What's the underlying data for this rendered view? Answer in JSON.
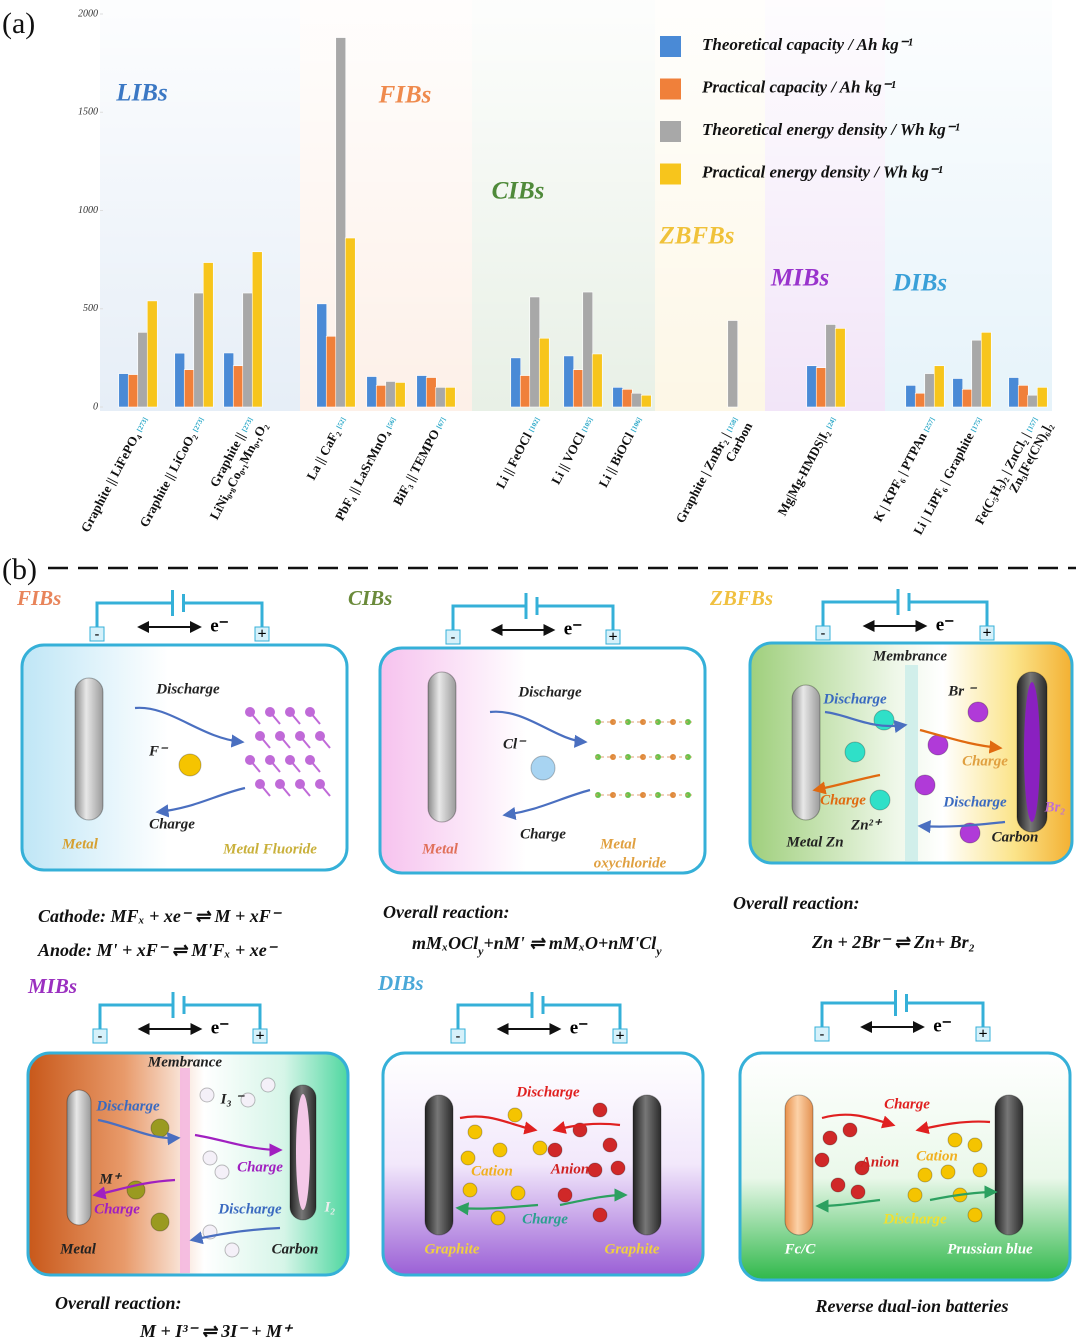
{
  "panel_labels": {
    "a": "(a)",
    "b": "(b)"
  },
  "chart_data": {
    "type": "bar",
    "categories": [
      [
        "Graphite || LiFePO₄"
      ],
      [
        "Graphite || LiCoO₂"
      ],
      [
        "Graphite ||",
        "LiNi₀.₈Co₀.₁Mn₀.₁O₂"
      ],
      [
        "La || CaF₂"
      ],
      [
        "PbF₄ || LaSrMnO₄"
      ],
      [
        "BiF₃ || TEMPO"
      ],
      [
        "Li || FeOCl"
      ],
      [
        "Li || VOCl"
      ],
      [
        "Li || BiOCl"
      ],
      [
        "Graphite | ZnBr₂ |",
        "Carbon"
      ],
      [
        "Mg|Mg-HMDS|I₂"
      ],
      [
        "K | KPF₆ | PTPAn"
      ],
      [
        "Li | LiPF₆ | Graphite"
      ],
      [
        "Fe(C₅H₅)₂ | ZnCl₂ |",
        "Zn₃[Fe(CN)₆]₂"
      ]
    ],
    "refs": [
      "[273]",
      "[273]",
      "[273]",
      "[52]",
      "[56]",
      "[67]",
      "[102]",
      "[105]",
      "[106]",
      "[158]",
      "[24]",
      "[257]",
      "[175]",
      "[157]"
    ],
    "groups": [
      {
        "name": "LIBs",
        "color": "#3b78c4"
      },
      {
        "name": "FIBs",
        "color": "#ef8a4d"
      },
      {
        "name": "CIBs",
        "color": "#4f8a3a"
      },
      {
        "name": "ZBFBs",
        "color": "#f0c23a"
      },
      {
        "name": "MIBs",
        "color": "#9933cc"
      },
      {
        "name": "DIBs",
        "color": "#3aa0d8"
      }
    ],
    "series": [
      {
        "name": "Theoretical capacity / Ah kg⁻¹",
        "color": "#4a8ad6",
        "values": [
          170,
          274,
          275,
          525,
          155,
          160,
          250,
          260,
          100,
          null,
          210,
          110,
          145,
          150
        ]
      },
      {
        "name": "Practical capacity / Ah kg⁻¹",
        "color": "#f0803a",
        "values": [
          165,
          190,
          210,
          360,
          110,
          150,
          160,
          190,
          90,
          null,
          200,
          70,
          90,
          110
        ]
      },
      {
        "name": "Theoretical energy density / Wh kg⁻¹",
        "color": "#a8a8a8",
        "values": [
          380,
          580,
          580,
          1880,
          130,
          100,
          560,
          585,
          70,
          440,
          420,
          170,
          340,
          60
        ]
      },
      {
        "name": "Practical energy density / Wh kg⁻¹",
        "color": "#f7c51c",
        "values": [
          540,
          735,
          790,
          860,
          125,
          100,
          350,
          270,
          60,
          null,
          400,
          210,
          380,
          100
        ]
      }
    ],
    "ylim": [
      0,
      2000
    ],
    "yticks": [
      0,
      500,
      1000,
      1500,
      2000
    ],
    "legend": "top-right"
  },
  "diagrams": {
    "panels": [
      {
        "title": "FIBs",
        "electron": "e⁻",
        "minus": "-",
        "plus": "+",
        "labels": [
          "Discharge",
          "F⁻",
          "Charge",
          "Metal",
          "Metal Fluoride"
        ],
        "reaction": [
          "Cathode:  MFₓ + xe⁻ ⇌ M + xF⁻",
          "Anode:  M' + xF⁻ ⇌ M'Fₓ + xe⁻"
        ]
      },
      {
        "title": "CIBs",
        "electron": "e⁻",
        "minus": "-",
        "plus": "+",
        "labels": [
          "Discharge",
          "Cl⁻",
          "Charge",
          "Metal",
          "Metal",
          "oxychloride"
        ],
        "reaction": [
          "Overall reaction:",
          [
            "mMₓOCl",
            {
              "sub": "y"
            },
            "+nM' ⇌ mMₓO+nM'Cl",
            {
              "sub": "y"
            }
          ]
        ]
      },
      {
        "title": "ZBFBs",
        "electron": "e⁻",
        "minus": "-",
        "plus": "+",
        "labels": [
          "Membrance",
          "Discharge",
          "Br ⁻",
          "Charge",
          "Charge",
          "Discharge",
          "Br₂",
          "Zn²⁺",
          "Metal Zn",
          "Carbon"
        ],
        "reaction": [
          "Overall reaction:",
          "Zn + 2Br⁻ ⇌ Zn+ Br₂"
        ]
      },
      {
        "title": "MIBs",
        "electron": "e⁻",
        "minus": "-",
        "plus": "+",
        "labels": [
          "Membrance",
          "I₃ ⁻",
          "Discharge",
          "Charge",
          "M⁺",
          "Charge",
          "Discharge",
          "I₂",
          "Metal",
          "Carbon"
        ],
        "reaction": [
          "Overall reaction:",
          "M + I³⁻ ⇌ 3I⁻ + M⁺"
        ]
      },
      {
        "title": "DIBs",
        "electron": "e⁻",
        "minus": "-",
        "plus": "+",
        "labels": [
          "Discharge",
          "Cation",
          "Anion",
          "Charge",
          "Graphite",
          "Graphite"
        ]
      },
      {
        "electron": "e⁻",
        "minus": "-",
        "plus": "+",
        "labels": [
          "Charge",
          "Anion",
          "Cation",
          "Discharge",
          "Fc/C",
          "Prussian blue"
        ],
        "reaction": [
          "Reverse dual-ion batteries"
        ]
      }
    ]
  }
}
